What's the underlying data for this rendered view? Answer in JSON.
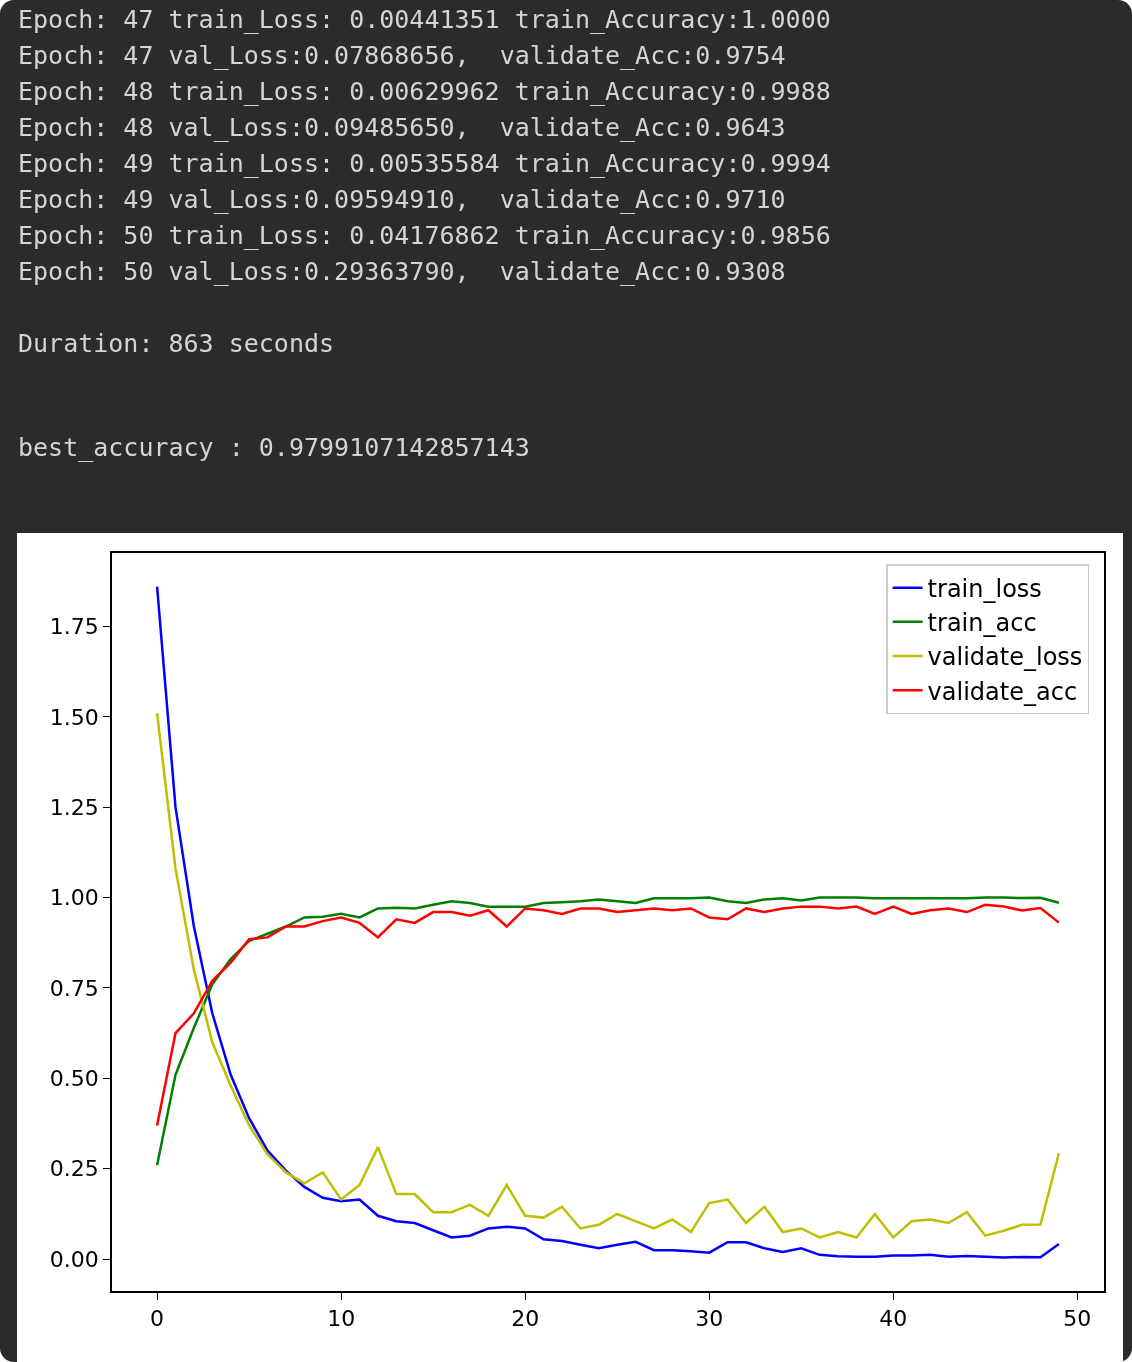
{
  "chart_data": {
    "type": "line",
    "annotations": [
      "Epoch: 47 train_Loss: 0.00441351 train_Accuracy:1.0000",
      "Epoch: 47 val_Loss:0.07868656,  validate_Acc:0.9754",
      "Epoch: 48 train_Loss: 0.00629962 train_Accuracy:0.9988",
      "Epoch: 48 val_Loss:0.09485650,  validate_Acc:0.9643",
      "Epoch: 49 train_Loss: 0.00535584 train_Accuracy:0.9994",
      "Epoch: 49 val_Loss:0.09594910,  validate_Acc:0.9710",
      "Epoch: 50 train_Loss: 0.04176862 train_Accuracy:0.9856",
      "Epoch: 50 val_Loss:0.29363790,  validate_Acc:0.9308",
      "Duration: 863 seconds",
      "best_accuracy : 0.9799107142857143"
    ],
    "x": [
      0,
      1,
      2,
      3,
      4,
      5,
      6,
      7,
      8,
      9,
      10,
      11,
      12,
      13,
      14,
      15,
      16,
      17,
      18,
      19,
      20,
      21,
      22,
      23,
      24,
      25,
      26,
      27,
      28,
      29,
      30,
      31,
      32,
      33,
      34,
      35,
      36,
      37,
      38,
      39,
      40,
      41,
      42,
      43,
      44,
      45,
      46,
      47,
      48,
      49
    ],
    "series": [
      {
        "name": "train_loss",
        "color": "#0000ff",
        "values": [
          1.86,
          1.25,
          0.92,
          0.68,
          0.51,
          0.39,
          0.3,
          0.245,
          0.2,
          0.17,
          0.16,
          0.165,
          0.12,
          0.105,
          0.1,
          0.08,
          0.06,
          0.065,
          0.085,
          0.09,
          0.085,
          0.055,
          0.05,
          0.04,
          0.03,
          0.04,
          0.048,
          0.025,
          0.025,
          0.022,
          0.018,
          0.047,
          0.047,
          0.03,
          0.02,
          0.03,
          0.012,
          0.008,
          0.007,
          0.007,
          0.01,
          0.01,
          0.012,
          0.007,
          0.009,
          0.007,
          0.0044,
          0.0063,
          0.0054,
          0.0418
        ]
      },
      {
        "name": "train_acc",
        "color": "#008000",
        "values": [
          0.26,
          0.51,
          0.64,
          0.76,
          0.83,
          0.88,
          0.9,
          0.92,
          0.945,
          0.947,
          0.955,
          0.945,
          0.97,
          0.972,
          0.97,
          0.98,
          0.99,
          0.985,
          0.975,
          0.975,
          0.975,
          0.985,
          0.987,
          0.99,
          0.995,
          0.99,
          0.985,
          0.998,
          0.998,
          0.998,
          1.0,
          0.99,
          0.985,
          0.995,
          0.998,
          0.992,
          1.0,
          1.0,
          1.0,
          0.998,
          0.998,
          0.998,
          0.998,
          0.998,
          0.998,
          1.0,
          1.0,
          0.9988,
          0.9994,
          0.9856
        ]
      },
      {
        "name": "validate_loss",
        "color": "#bfbf00",
        "values": [
          1.51,
          1.08,
          0.8,
          0.6,
          0.48,
          0.37,
          0.29,
          0.24,
          0.21,
          0.24,
          0.165,
          0.205,
          0.31,
          0.18,
          0.18,
          0.13,
          0.13,
          0.15,
          0.12,
          0.205,
          0.12,
          0.115,
          0.145,
          0.085,
          0.095,
          0.125,
          0.105,
          0.085,
          0.11,
          0.075,
          0.155,
          0.165,
          0.1,
          0.145,
          0.075,
          0.085,
          0.06,
          0.075,
          0.06,
          0.125,
          0.06,
          0.105,
          0.11,
          0.1,
          0.13,
          0.065,
          0.0787,
          0.0949,
          0.0959,
          0.2936
        ]
      },
      {
        "name": "validate_acc",
        "color": "#ff0000",
        "values": [
          0.37,
          0.625,
          0.68,
          0.77,
          0.82,
          0.885,
          0.89,
          0.92,
          0.92,
          0.935,
          0.945,
          0.93,
          0.89,
          0.94,
          0.93,
          0.96,
          0.96,
          0.95,
          0.965,
          0.92,
          0.97,
          0.965,
          0.955,
          0.97,
          0.97,
          0.96,
          0.965,
          0.97,
          0.965,
          0.97,
          0.945,
          0.94,
          0.97,
          0.96,
          0.97,
          0.975,
          0.975,
          0.97,
          0.975,
          0.955,
          0.975,
          0.955,
          0.965,
          0.97,
          0.96,
          0.98,
          0.9754,
          0.9643,
          0.971,
          0.9308
        ]
      }
    ],
    "xlim": [
      -2.45,
      51.45
    ],
    "ylim": [
      -0.088,
      1.953
    ],
    "xticks": [
      0,
      10,
      20,
      30,
      40,
      50
    ],
    "yticks": [
      {
        "value": 0,
        "label": "0.00"
      },
      {
        "value": 0.25,
        "label": "0.25"
      },
      {
        "value": 0.5,
        "label": "0.50"
      },
      {
        "value": 0.75,
        "label": "0.75"
      },
      {
        "value": 1,
        "label": "1.00"
      },
      {
        "value": 1.25,
        "label": "1.25"
      },
      {
        "value": 1.5,
        "label": "1.50"
      },
      {
        "value": 1.75,
        "label": "1.75"
      }
    ],
    "grid": false,
    "legend": "top right",
    "marker": "none",
    "line_style": "solid"
  }
}
